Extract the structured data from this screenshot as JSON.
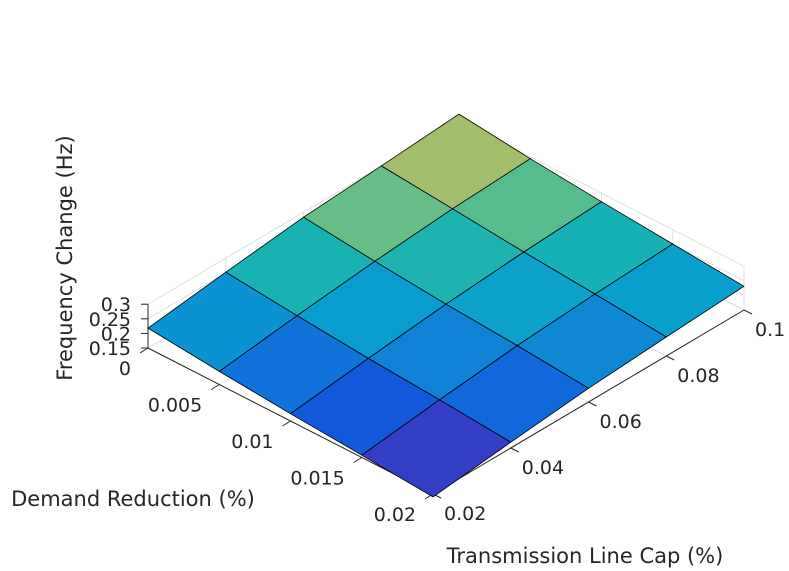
{
  "chart_data": {
    "type": "surface",
    "xlabel": "Demand Reduction (%)",
    "ylabel": "Transmission Line Cap (%)",
    "zlabel": "Frequency Change (Hz)",
    "x": [
      0,
      0.005,
      0.01,
      0.015,
      0.02
    ],
    "y": [
      0.02,
      0.04,
      0.06,
      0.08,
      0.1
    ],
    "x_ticks": [
      "0",
      "0.005",
      "0.01",
      "0.015",
      "0.02"
    ],
    "y_ticks": [
      "0.02",
      "0.04",
      "0.06",
      "0.08",
      "0.1"
    ],
    "z_ticks": [
      "0.15",
      "0.2",
      "0.25",
      "0.3"
    ],
    "zlim": [
      0.15,
      0.3
    ],
    "z": [
      [
        0.218,
        0.252,
        0.283,
        0.301,
        0.321
      ],
      [
        0.195,
        0.228,
        0.257,
        0.279,
        0.293
      ],
      [
        0.175,
        0.207,
        0.235,
        0.256,
        0.271
      ],
      [
        0.158,
        0.19,
        0.218,
        0.237,
        0.251
      ],
      [
        0.14,
        0.17,
        0.197,
        0.215,
        0.231
      ]
    ],
    "colormap": "parula",
    "grid": true,
    "colors": {
      "grid": "#e0e0e0",
      "axis": "#262626",
      "edge": "#000000"
    }
  }
}
